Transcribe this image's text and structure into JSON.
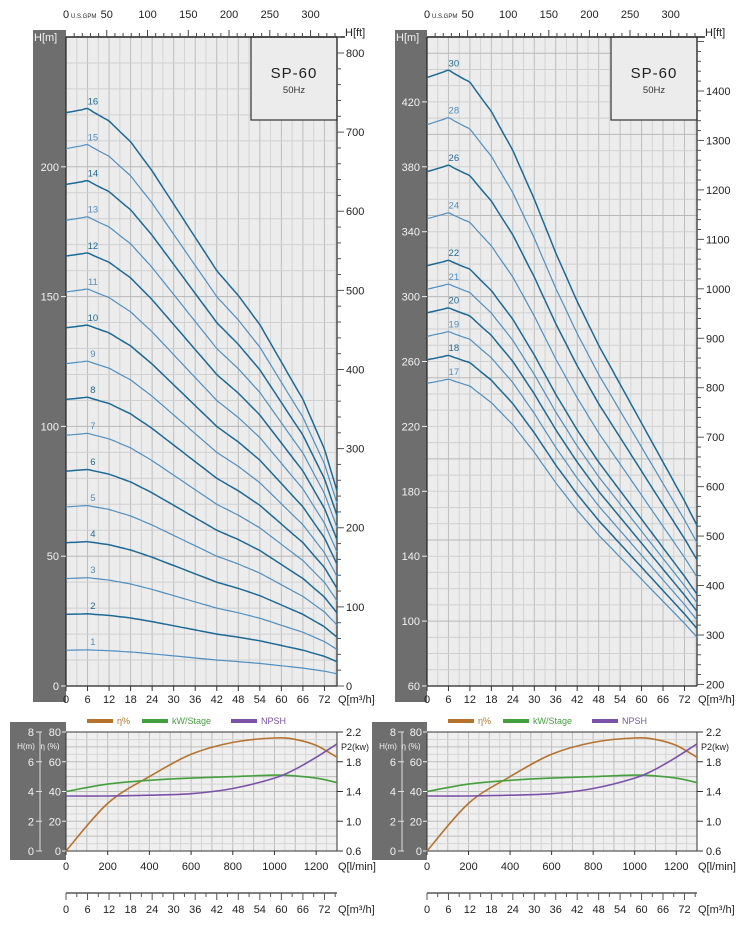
{
  "chart_data": [
    {
      "type": "line",
      "panel": "left",
      "title": "SP-60",
      "subtitle": "50Hz",
      "gpm_axis": {
        "label": "U.S.GPM",
        "ticks": [
          0,
          50,
          100,
          150,
          200,
          250,
          300
        ]
      },
      "xlabel": "Q[m³/h]",
      "xlim": [
        0,
        75.5
      ],
      "x_ticks": [
        0,
        6,
        12,
        18,
        24,
        30,
        36,
        42,
        48,
        54,
        60,
        66,
        72
      ],
      "ylabel": "H[m]",
      "ylim": [
        0,
        250
      ],
      "y_ticks": [
        0,
        50,
        100,
        150,
        200
      ],
      "ft_label": "H[ft]",
      "ft_ticks": [
        0,
        100,
        200,
        300,
        400,
        500,
        600,
        700,
        800
      ],
      "grid": true,
      "q_points": [
        0,
        6,
        12,
        18,
        24,
        30,
        36,
        42,
        48,
        54,
        60,
        66,
        72,
        75.5
      ],
      "head_per_stage": [
        13.8,
        13.9,
        13.6,
        13.1,
        12.4,
        11.6,
        10.8,
        10.0,
        9.4,
        8.7,
        7.8,
        6.9,
        5.7,
        4.7
      ],
      "series": [
        {
          "name": "16",
          "stages": 16,
          "style": "dark"
        },
        {
          "name": "15",
          "stages": 15,
          "style": "light"
        },
        {
          "name": "14",
          "stages": 14,
          "style": "dark"
        },
        {
          "name": "13",
          "stages": 13,
          "style": "light"
        },
        {
          "name": "12",
          "stages": 12,
          "style": "dark"
        },
        {
          "name": "11",
          "stages": 11,
          "style": "light"
        },
        {
          "name": "10",
          "stages": 10,
          "style": "dark"
        },
        {
          "name": "9",
          "stages": 9,
          "style": "light"
        },
        {
          "name": "8",
          "stages": 8,
          "style": "dark"
        },
        {
          "name": "7",
          "stages": 7,
          "style": "light"
        },
        {
          "name": "6",
          "stages": 6,
          "style": "dark"
        },
        {
          "name": "5",
          "stages": 5,
          "style": "light"
        },
        {
          "name": "4",
          "stages": 4,
          "style": "dark"
        },
        {
          "name": "3",
          "stages": 3,
          "style": "light"
        },
        {
          "name": "2",
          "stages": 2,
          "style": "dark"
        },
        {
          "name": "1",
          "stages": 1,
          "style": "light"
        }
      ]
    },
    {
      "type": "line",
      "panel": "left",
      "legend": [
        "η%",
        "kW/Stage",
        "NPSH"
      ],
      "legend_placement": "top",
      "xlabel": "Q[l/min]",
      "xlim": [
        0,
        1300
      ],
      "x_ticks": [
        0,
        200,
        400,
        600,
        800,
        1000,
        1200
      ],
      "x2label": "Q[m³/h]",
      "x2lim": [
        0,
        75.5
      ],
      "x2_ticks": [
        0,
        6,
        12,
        18,
        24,
        30,
        36,
        42,
        48,
        54,
        60,
        66,
        72
      ],
      "h_label": "H(m)",
      "h_ticks": [
        0,
        2,
        4,
        6,
        8
      ],
      "hlim": [
        0,
        8
      ],
      "eta_label": "η (%)",
      "eta_ticks": [
        0,
        20,
        40,
        60,
        80
      ],
      "etalim": [
        0,
        80
      ],
      "p2_label": "P2(kw)",
      "p2_ticks": [
        "0.6",
        "1.0",
        "1.4",
        "1.8",
        "2.2"
      ],
      "p2lim": [
        0.6,
        2.2
      ],
      "grid": true,
      "q_points": [
        0,
        200,
        400,
        600,
        800,
        1000,
        1100,
        1200,
        1300
      ],
      "series": [
        {
          "name": "η%",
          "axis": "eta",
          "values": [
            0,
            32,
            50,
            65,
            73,
            76,
            75,
            71,
            63
          ]
        },
        {
          "name": "kW/Stage",
          "axis": "p2",
          "values": [
            1.4,
            1.5,
            1.55,
            1.58,
            1.6,
            1.62,
            1.61,
            1.58,
            1.52
          ]
        },
        {
          "name": "NPSH",
          "axis": "h",
          "values": [
            3.7,
            3.7,
            3.75,
            3.85,
            4.2,
            4.9,
            5.5,
            6.3,
            7.2
          ]
        }
      ]
    },
    {
      "type": "line",
      "panel": "right",
      "title": "SP-60",
      "subtitle": "50Hz",
      "gpm_axis": {
        "label": "U.S.GPM",
        "ticks": [
          0,
          50,
          100,
          150,
          200,
          250,
          300
        ]
      },
      "xlabel": "Q[m³/h]",
      "xlim": [
        0,
        75.5
      ],
      "x_ticks": [
        0,
        6,
        12,
        18,
        24,
        30,
        36,
        42,
        48,
        54,
        60,
        66,
        72
      ],
      "ylabel": "H[m]",
      "ylim": [
        60,
        460
      ],
      "y_ticks": [
        60,
        100,
        140,
        180,
        220,
        260,
        300,
        340,
        380,
        420
      ],
      "ft_label": "H[ft]",
      "ft_ticks": [
        200,
        300,
        400,
        500,
        600,
        700,
        800,
        900,
        1000,
        1100,
        1200,
        1300,
        1400
      ],
      "grid": true,
      "q_points": [
        0,
        6,
        12,
        18,
        24,
        30,
        36,
        42,
        48,
        54,
        60,
        66,
        72,
        75.5
      ],
      "head_per_stage": [
        14.5,
        14.65,
        14.4,
        13.8,
        13.0,
        12.0,
        10.9,
        9.9,
        9.0,
        8.2,
        7.4,
        6.6,
        5.8,
        5.3
      ],
      "series": [
        {
          "name": "30",
          "stages": 30,
          "style": "dark"
        },
        {
          "name": "28",
          "stages": 28,
          "style": "light"
        },
        {
          "name": "26",
          "stages": 26,
          "style": "dark"
        },
        {
          "name": "24",
          "stages": 24,
          "style": "light"
        },
        {
          "name": "22",
          "stages": 22,
          "style": "dark"
        },
        {
          "name": "21",
          "stages": 21,
          "style": "light"
        },
        {
          "name": "20",
          "stages": 20,
          "style": "dark"
        },
        {
          "name": "19",
          "stages": 19,
          "style": "light"
        },
        {
          "name": "18",
          "stages": 18,
          "style": "dark"
        },
        {
          "name": "17",
          "stages": 17,
          "style": "light"
        }
      ]
    },
    {
      "type": "line",
      "panel": "right",
      "legend": [
        "η%",
        "kW/Stage",
        "NPSH"
      ],
      "legend_placement": "top",
      "xlabel": "Q[l/min]",
      "xlim": [
        0,
        1300
      ],
      "x_ticks": [
        0,
        200,
        400,
        600,
        800,
        1000,
        1200
      ],
      "x2label": "Q[m³/h]",
      "x2lim": [
        0,
        75.5
      ],
      "x2_ticks": [
        0,
        6,
        12,
        18,
        24,
        30,
        36,
        42,
        48,
        54,
        60,
        66,
        72
      ],
      "h_label": "H(m)",
      "h_ticks": [
        0,
        2,
        4,
        6,
        8
      ],
      "hlim": [
        0,
        8
      ],
      "eta_label": "η (%)",
      "eta_ticks": [
        0,
        20,
        40,
        60,
        80
      ],
      "etalim": [
        0,
        80
      ],
      "p2_label": "P2(kw)",
      "p2_ticks": [
        "0.6",
        "1.0",
        "1.4",
        "1.8",
        "2.2"
      ],
      "p2lim": [
        0.6,
        2.2
      ],
      "grid": true,
      "q_points": [
        0,
        200,
        400,
        600,
        800,
        1000,
        1100,
        1200,
        1300
      ],
      "series": [
        {
          "name": "η%",
          "axis": "eta",
          "values": [
            0,
            32,
            50,
            65,
            73,
            76,
            75,
            71,
            63
          ]
        },
        {
          "name": "kW/Stage",
          "axis": "p2",
          "values": [
            1.4,
            1.5,
            1.55,
            1.58,
            1.6,
            1.62,
            1.61,
            1.58,
            1.52
          ]
        },
        {
          "name": "NPSH",
          "axis": "h",
          "values": [
            3.7,
            3.7,
            3.75,
            3.85,
            4.2,
            4.9,
            5.5,
            6.3,
            7.2
          ]
        }
      ]
    }
  ],
  "colors": {
    "curve_dark": "#1d6996",
    "curve_light": "#4f8fc2",
    "eta": "#b5732f",
    "kw": "#44a03c",
    "npsh": "#7b52a8",
    "band": "#6e6e6e",
    "plot_bg": "#ececec"
  }
}
